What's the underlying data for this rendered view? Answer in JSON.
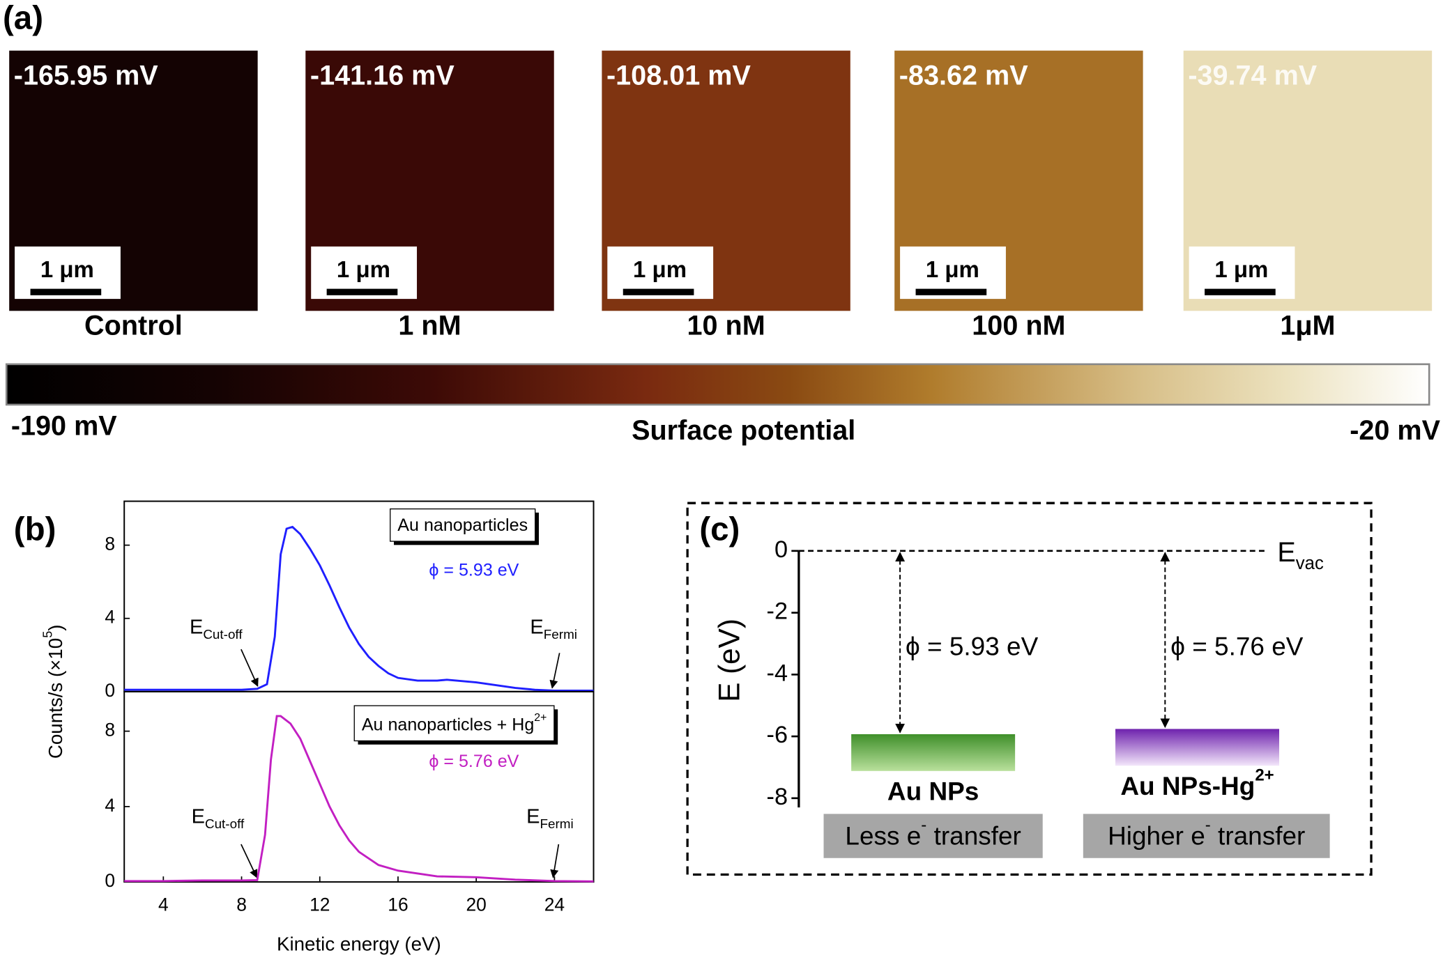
{
  "panel_a": {
    "label": "(a)",
    "images": [
      {
        "value": -165.95,
        "value_label": "-165.95 mV",
        "scale_bar": "1 μm",
        "caption": "Control"
      },
      {
        "value": -141.16,
        "value_label": "-141.16 mV",
        "scale_bar": "1 μm",
        "caption": "1 nM"
      },
      {
        "value": -108.01,
        "value_label": "-108.01 mV",
        "scale_bar": "1 μm",
        "caption": "10 nM"
      },
      {
        "value": -83.62,
        "value_label": "-83.62 mV",
        "scale_bar": "1 μm",
        "caption": "100 nM"
      },
      {
        "value": -39.74,
        "value_label": "-39.74 mV",
        "scale_bar": "1 μm",
        "caption": "1μM"
      }
    ],
    "colorbar": {
      "min": -190,
      "min_label": "-190 mV",
      "max": -20,
      "max_label": "-20 mV",
      "title": "Surface potential",
      "stops": [
        [
          0,
          "#000000"
        ],
        [
          0.15,
          "#150303"
        ],
        [
          0.3,
          "#3d0a06"
        ],
        [
          0.45,
          "#7a2a10"
        ],
        [
          0.55,
          "#8a4a12"
        ],
        [
          0.65,
          "#b07c2c"
        ],
        [
          0.8,
          "#d8c08a"
        ],
        [
          0.9,
          "#ece2bf"
        ],
        [
          1,
          "#ffffff"
        ]
      ]
    }
  },
  "chart_data": [
    {
      "type": "line",
      "panel_label": "(b)",
      "y_label": {
        "text": "Counts/s (×10",
        "sup": "5",
        "tail": ")"
      },
      "xlim": [
        2,
        26
      ],
      "ylim": [
        0,
        10.4
      ],
      "yticks": [
        0,
        4,
        8
      ],
      "x": [
        2,
        4,
        6,
        8,
        8.8,
        9.3,
        9.7,
        10,
        10.3,
        10.6,
        11,
        11.5,
        12,
        12.5,
        13,
        13.5,
        14,
        14.5,
        15,
        15.5,
        16,
        17,
        18,
        18.5,
        19,
        20,
        21,
        22,
        23,
        24,
        26
      ],
      "series": [
        {
          "name": "Au nanoparticles",
          "color": "#1f1fff",
          "values": [
            0.1,
            0.1,
            0.1,
            0.1,
            0.15,
            0.4,
            3,
            7.5,
            8.9,
            9.0,
            8.6,
            7.8,
            6.9,
            5.8,
            4.6,
            3.5,
            2.6,
            1.9,
            1.4,
            1.0,
            0.75,
            0.6,
            0.6,
            0.65,
            0.6,
            0.5,
            0.35,
            0.2,
            0.1,
            0.05,
            0.05
          ]
        }
      ],
      "work_function": "ϕ = 5.93 eV",
      "annotations": [
        {
          "text": "E",
          "sub": "Cut-off"
        },
        {
          "text": "E",
          "sub": "Fermi"
        }
      ]
    },
    {
      "type": "line",
      "x_label": "Kinetic energy (eV)",
      "xlim": [
        2,
        26
      ],
      "ylim": [
        0,
        10.1
      ],
      "xticks": [
        4,
        8,
        12,
        16,
        20,
        24
      ],
      "yticks": [
        0,
        4,
        8
      ],
      "x": [
        2,
        4,
        6,
        8,
        8.8,
        9.2,
        9.5,
        9.8,
        10,
        10.5,
        11,
        11.5,
        12,
        12.5,
        13,
        13.5,
        14,
        15,
        16,
        17,
        18,
        20,
        22,
        24,
        26
      ],
      "series": [
        {
          "name": "Au nanoparticles + Hg",
          "name_sup": "2+",
          "color": "#c21fc2",
          "values": [
            0.05,
            0.05,
            0.08,
            0.08,
            0.1,
            2.5,
            6.5,
            8.8,
            8.8,
            8.4,
            7.6,
            6.4,
            5.2,
            4.0,
            3.0,
            2.2,
            1.6,
            0.9,
            0.6,
            0.45,
            0.3,
            0.25,
            0.12,
            0.05,
            0.03
          ]
        }
      ],
      "work_function": "ϕ = 5.76 eV",
      "annotations": [
        {
          "text": "E",
          "sub": "Cut-off"
        },
        {
          "text": "E",
          "sub": "Fermi"
        }
      ]
    },
    {
      "type": "energy_diagram",
      "panel_label": "(c)",
      "y_label": "E (eV)",
      "ylim": [
        -8.3,
        0
      ],
      "yticks": [
        0,
        -2,
        -4,
        -6,
        -8
      ],
      "vacuum_level": {
        "value": 0,
        "label": {
          "text": "E",
          "sub": "vac"
        }
      },
      "levels": [
        {
          "value": -5.93,
          "annotation": "ϕ = 5.93 eV",
          "name": {
            "text": "Au NPs"
          },
          "box_label": {
            "text": "Less e",
            "sup": "-",
            "tail": " transfer"
          },
          "colors": [
            "#3f8f2a",
            "#b9e09c"
          ]
        },
        {
          "value": -5.76,
          "annotation": "ϕ = 5.76 eV",
          "name": {
            "text": "Au NPs-Hg",
            "sup": "2+"
          },
          "box_label": {
            "text": "Higher e",
            "sup": "-",
            "tail": " transfer"
          },
          "colors": [
            "#6e22ad",
            "#f3e6fa"
          ]
        }
      ]
    }
  ]
}
